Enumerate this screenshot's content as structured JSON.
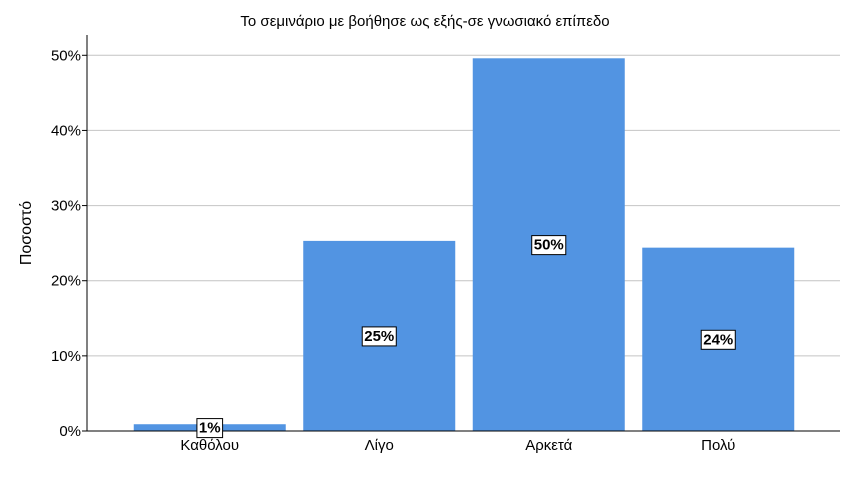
{
  "chart_data": {
    "type": "bar",
    "title": "Το σεμινάριο με βοήθησε ως εξής-σε γνωσιακό επίπεδο",
    "y_label": "Ποσοστό",
    "categories": [
      "Καθόλου",
      "Λίγο",
      "Αρκετά",
      "Πολύ"
    ],
    "values": [
      0.9,
      25.3,
      49.6,
      24.4
    ],
    "value_labels": [
      "1%",
      "25%",
      "50%",
      "24%"
    ],
    "color": "#5294e2",
    "ylim": [
      0,
      52.7
    ],
    "yticks": [
      {
        "value": 0,
        "label": "0%"
      },
      {
        "value": 10,
        "label": "10%"
      },
      {
        "value": 20,
        "label": "20%"
      },
      {
        "value": 30,
        "label": "30%"
      },
      {
        "value": 40,
        "label": "40%"
      },
      {
        "value": 50,
        "label": "50%"
      }
    ],
    "grid": true
  }
}
